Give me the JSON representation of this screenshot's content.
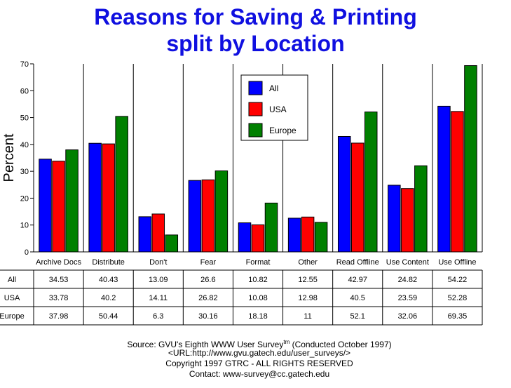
{
  "title_line1": "Reasons for Saving & Printing",
  "title_line2": "split by Location",
  "chart_data": {
    "type": "bar",
    "ylabel": "Percent",
    "xlabel": "",
    "ylim": [
      0,
      70
    ],
    "yticks": [
      0,
      10,
      20,
      30,
      40,
      50,
      60,
      70
    ],
    "grid": "vertical category separators",
    "legend_position": "top-center",
    "categories": [
      "Archive Docs",
      "Distribute",
      "Don't",
      "Fear",
      "Format",
      "Other",
      "Read Offline",
      "Use Content",
      "Use Offline"
    ],
    "series": [
      {
        "name": "All",
        "color": "#0000ff",
        "values": [
          34.53,
          40.43,
          13.09,
          26.6,
          10.82,
          12.55,
          42.97,
          24.82,
          54.22
        ]
      },
      {
        "name": "USA",
        "color": "#ff0000",
        "values": [
          33.78,
          40.2,
          14.11,
          26.82,
          10.08,
          12.98,
          40.5,
          23.59,
          52.28
        ]
      },
      {
        "name": "Europe",
        "color": "#008000",
        "values": [
          37.98,
          50.44,
          6.3,
          30.16,
          18.18,
          11,
          52.1,
          32.06,
          69.35
        ]
      }
    ],
    "table_values": [
      [
        "34.53",
        "40.43",
        "13.09",
        "26.6",
        "10.82",
        "12.55",
        "42.97",
        "24.82",
        "54.22"
      ],
      [
        "33.78",
        "40.2",
        "14.11",
        "26.82",
        "10.08",
        "12.98",
        "40.5",
        "23.59",
        "52.28"
      ],
      [
        "37.98",
        "50.44",
        "6.3",
        "30.16",
        "18.18",
        "11",
        "52.1",
        "32.06",
        "69.35"
      ]
    ]
  },
  "source": {
    "line1_prefix": "Source: GVU's Eighth WWW User Survey",
    "line1_sup": "tm",
    "line1_suffix": " (Conducted October 1997)",
    "line2": "<URL:http://www.gvu.gatech.edu/user_surveys/>",
    "line3": "Copyright 1997 GTRC - ALL RIGHTS RESERVED",
    "line4": "Contact: www-survey@cc.gatech.edu"
  }
}
